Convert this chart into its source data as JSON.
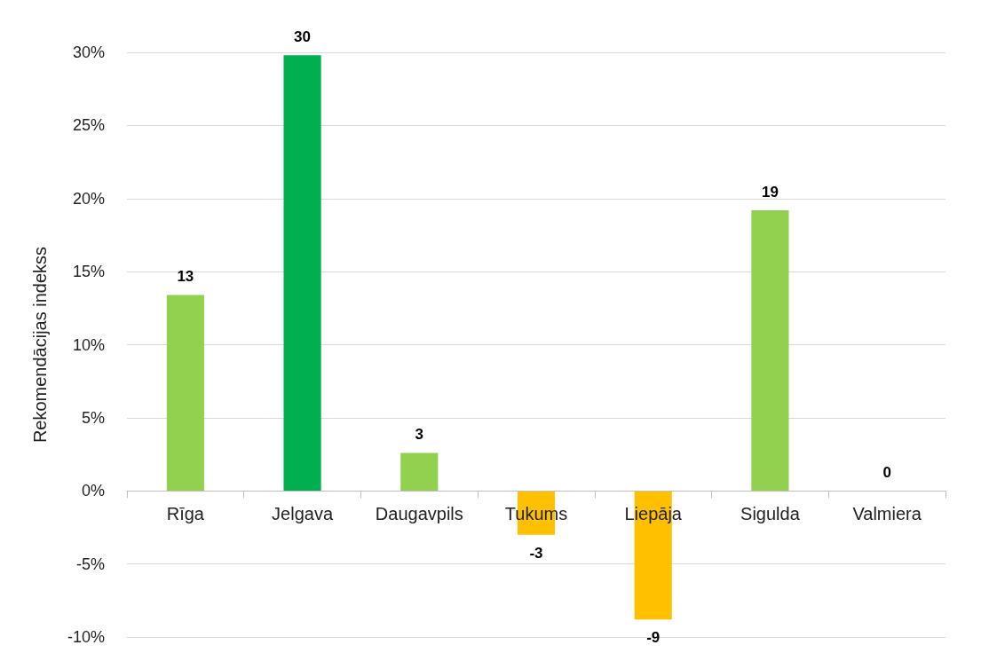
{
  "chart_data": {
    "type": "bar",
    "ylabel": "Rekomendācijas indekss",
    "categories": [
      "Rīga",
      "Jelgava",
      "Daugavpils",
      "Tukums",
      "Liepāja",
      "Sigulda",
      "Valmiera"
    ],
    "values": [
      13.4,
      29.8,
      2.6,
      -3.0,
      -8.8,
      19.2,
      0
    ],
    "colors": [
      "#92d050",
      "#00b050",
      "#92d050",
      "#ffc000",
      "#ffc000",
      "#92d050",
      "#92d050"
    ],
    "value_labels": [
      "13",
      "30",
      "3",
      "-3",
      "-9",
      "19",
      "0"
    ],
    "ylim": [
      -10,
      30
    ],
    "yticks": [
      {
        "value": -10,
        "label": "-10%"
      },
      {
        "value": -5,
        "label": "-5%"
      },
      {
        "value": 0,
        "label": "0%"
      },
      {
        "value": 5,
        "label": "5%"
      },
      {
        "value": 10,
        "label": "10%"
      },
      {
        "value": 15,
        "label": "15%"
      },
      {
        "value": 20,
        "label": "20%"
      },
      {
        "value": 25,
        "label": "25%"
      },
      {
        "value": 30,
        "label": "30%"
      }
    ],
    "grid": "y"
  }
}
